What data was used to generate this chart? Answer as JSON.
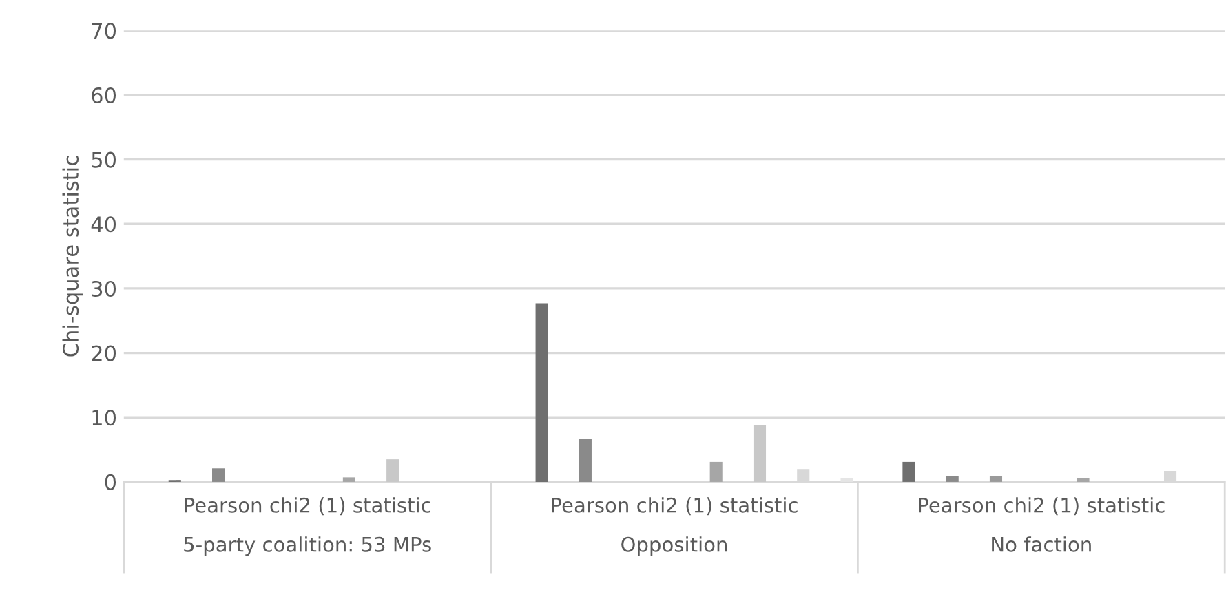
{
  "chart_data": {
    "type": "bar",
    "ylabel": "Chi-square statistic",
    "categories": [
      "Pearson chi2 (1) statistic\n5-party coalition: 53 MPs",
      "Pearson chi2 (1) statistic\nOpposition",
      "Pearson chi2 (1) statistic\nNo faction"
    ],
    "series": [
      {
        "color": "#6f6f6f",
        "values": [
          0.3,
          27.7,
          3.1
        ]
      },
      {
        "color": "#8a8a8a",
        "values": [
          2.1,
          6.6,
          0.9
        ]
      },
      {
        "color": "#9a9a9a",
        "values": [
          null,
          null,
          0.9
        ]
      },
      {
        "color": "#a5a5a5",
        "values": [
          null,
          null,
          null
        ]
      },
      {
        "color": "#a6a6a6",
        "values": [
          0.7,
          3.1,
          0.6
        ]
      },
      {
        "color": "#c8c8c8",
        "values": [
          3.5,
          8.8,
          null
        ]
      },
      {
        "color": "#d8d8d8",
        "values": [
          null,
          2.0,
          1.7
        ]
      },
      {
        "color": "#e5e5e5",
        "values": [
          null,
          0.6,
          null
        ]
      }
    ],
    "ylim": [
      0,
      70
    ],
    "yticks": [
      0,
      10,
      20,
      30,
      40,
      50,
      60,
      70
    ],
    "grid": "y",
    "legend": false
  }
}
